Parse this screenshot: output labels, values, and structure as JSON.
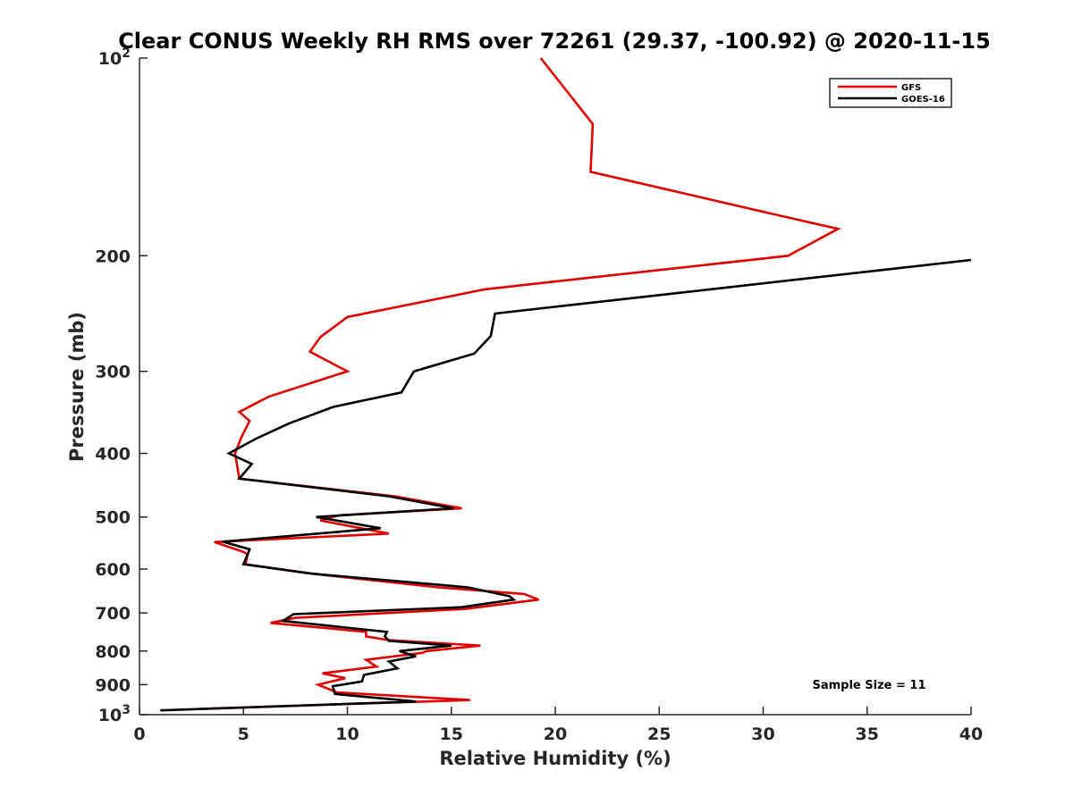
{
  "chart_data": {
    "type": "line",
    "title": "Clear CONUS Weekly RH RMS over 72261 (29.37, -100.92) @ 2020-11-15",
    "xlabel": "Relative Humidity (%)",
    "ylabel": "Pressure (mb)",
    "xlim": [
      0,
      40
    ],
    "ylim": [
      100,
      1000
    ],
    "yscale": "log",
    "y_reversed": true,
    "grid": false,
    "legend_position": "top-right",
    "x_ticks": [
      0,
      5,
      10,
      15,
      20,
      25,
      30,
      35,
      40
    ],
    "x_tick_labels": [
      "0",
      "5",
      "10",
      "15",
      "20",
      "25",
      "30",
      "35",
      "40"
    ],
    "y_ticks": [
      100,
      200,
      300,
      400,
      500,
      600,
      700,
      800,
      900,
      1000
    ],
    "y_tick_labels": [
      "10^2",
      "200",
      "300",
      "400",
      "500",
      "600",
      "700",
      "800",
      "900",
      "10^3"
    ],
    "annotation": "Sample Size = 11",
    "series": [
      {
        "name": "GFS",
        "color": "#e00000",
        "x": [
          19.3,
          21.8,
          21.7,
          30.2,
          33.6,
          31.2,
          16.6,
          10.0,
          8.7,
          8.2,
          10.0,
          6.2,
          4.8,
          5.3,
          4.9,
          4.6,
          4.8,
          12.3,
          15.5,
          9.6,
          8.7,
          12.0,
          3.6,
          5.0,
          5.2,
          5.1,
          8.3,
          14.4,
          18.5,
          19.2,
          15.7,
          7.5,
          6.3,
          10.9,
          10.9,
          12.0,
          16.4,
          13.8,
          13.6,
          10.9,
          11.4,
          8.8,
          9.9,
          8.6,
          9.5,
          15.9,
          2.9
        ],
        "y": [
          100,
          126,
          149,
          172,
          182,
          200,
          225,
          248,
          266,
          280,
          300,
          328,
          346,
          357,
          378,
          400,
          437,
          465,
          485,
          497,
          506,
          530,
          546,
          565,
          570,
          590,
          610,
          640,
          655,
          668,
          690,
          712,
          725,
          748,
          760,
          770,
          785,
          800,
          805,
          825,
          845,
          865,
          880,
          900,
          925,
          950,
          980
        ]
      },
      {
        "name": "GOES-16",
        "color": "#000000",
        "x": [
          40.0,
          17.1,
          16.9,
          16.1,
          13.2,
          12.6,
          9.3,
          7.2,
          5.6,
          4.3,
          5.4,
          4.8,
          12.0,
          15.1,
          8.5,
          11.6,
          4.0,
          5.3,
          5.2,
          5.0,
          8.3,
          15.8,
          17.8,
          18.0,
          15.5,
          7.4,
          6.9,
          11.9,
          11.8,
          12.0,
          15.0,
          12.5,
          13.3,
          12.0,
          12.4,
          10.8,
          10.7,
          9.3,
          9.4,
          13.3,
          1.0
        ],
        "y": [
          203,
          245,
          265,
          282,
          300,
          323,
          340,
          360,
          380,
          400,
          415,
          437,
          465,
          485,
          500,
          520,
          545,
          560,
          570,
          590,
          610,
          640,
          660,
          668,
          686,
          703,
          720,
          748,
          760,
          772,
          785,
          800,
          815,
          830,
          850,
          870,
          890,
          905,
          930,
          955,
          985
        ]
      }
    ]
  }
}
